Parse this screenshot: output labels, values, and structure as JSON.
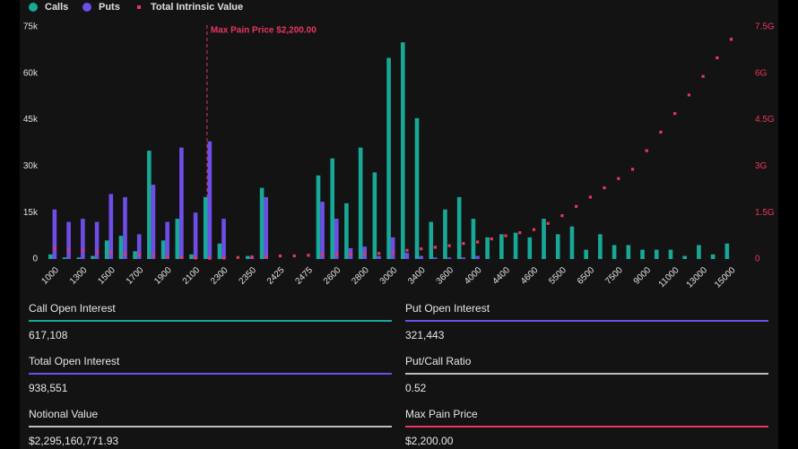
{
  "chart_data": {
    "type": "bar",
    "categories": [
      1000,
      null,
      1300,
      null,
      1500,
      null,
      1700,
      null,
      1900,
      null,
      2100,
      null,
      2300,
      null,
      2350,
      null,
      2425,
      null,
      2475,
      null,
      2600,
      null,
      2800,
      null,
      3000,
      null,
      3400,
      null,
      3600,
      null,
      4000,
      null,
      4400,
      null,
      4600,
      null,
      5500,
      null,
      6500,
      null,
      7500,
      null,
      9000,
      null,
      11000,
      null,
      13000,
      null,
      15000
    ],
    "series": [
      {
        "name": "Calls",
        "color": "#17a898",
        "values": [
          1500,
          500,
          500,
          1000,
          6000,
          7500,
          2500,
          35000,
          6000,
          13000,
          1500,
          20000,
          5000,
          0,
          1000,
          23000,
          0,
          0,
          0,
          27000,
          32500,
          18000,
          36000,
          28000,
          65000,
          70000,
          45500,
          12000,
          16000,
          20000,
          13000,
          7000,
          8000,
          8500,
          7000,
          13000,
          8000,
          10500,
          3000,
          8000,
          4500,
          4500,
          3000,
          3000,
          3000,
          1000,
          4500,
          1500,
          5000
        ]
      },
      {
        "name": "Puts",
        "color": "#6f4ee8",
        "values": [
          16000,
          12000,
          13000,
          12000,
          21000,
          20000,
          8000,
          24000,
          12000,
          36000,
          15000,
          38000,
          13000,
          0,
          500,
          20000,
          0,
          0,
          0,
          18500,
          13000,
          3500,
          4000,
          1000,
          7000,
          2000,
          1000,
          500,
          500,
          500,
          1000,
          0,
          0,
          0,
          0,
          0,
          0,
          0,
          0,
          0,
          0,
          0,
          0,
          0,
          0,
          0,
          0,
          0,
          0
        ]
      },
      {
        "name": "Total Intrinsic Value",
        "color": "#e8365d",
        "axis": "y2",
        "type": "scatter",
        "values": [
          350000000.0,
          300000000.0,
          280000000.0,
          250000000.0,
          200000000.0,
          160000000.0,
          130000000.0,
          100000000.0,
          80000000.0,
          50000000.0,
          30000000.0,
          20000000.0,
          30000000.0,
          50000000.0,
          70000000.0,
          80000000.0,
          100000000.0,
          100000000.0,
          120000000.0,
          130000000.0,
          140000000.0,
          150000000.0,
          160000000.0,
          180000000.0,
          200000000.0,
          280000000.0,
          330000000.0,
          380000000.0,
          430000000.0,
          500000000.0,
          550000000.0,
          650000000.0,
          750000000.0,
          850000000.0,
          950000000.0,
          1150000000.0,
          1400000000.0,
          1700000000.0,
          2000000000.0,
          2300000000.0,
          2600000000.0,
          2900000000.0,
          3500000000.0,
          4100000000.0,
          4700000000.0,
          5300000000.0,
          5900000000.0,
          6500000000.0,
          7100000000.0
        ]
      }
    ],
    "ylim": [
      0,
      75000
    ],
    "yticks": [
      0,
      {
        "value": 15000,
        "label": "15k"
      },
      {
        "value": 30000,
        "label": "30k"
      },
      {
        "value": 45000,
        "label": "45k"
      },
      {
        "value": 60000,
        "label": "60k"
      },
      {
        "value": 75000,
        "label": "75k"
      }
    ],
    "y2lim": [
      0,
      7500000000
    ],
    "y2ticks": [
      0,
      {
        "value": 1500000000,
        "label": "1.5G"
      },
      {
        "value": 3000000000,
        "label": "3G"
      },
      {
        "value": 4500000000,
        "label": "4.5G"
      },
      {
        "value": 6000000000,
        "label": "6G"
      },
      {
        "value": 7500000000,
        "label": "7.5G"
      }
    ],
    "annotation": {
      "text": "Max Pain Price $2,200.00",
      "x": 2200,
      "color": "#e8365d"
    }
  },
  "stats": [
    {
      "label": "Call Open Interest",
      "value": "617,108",
      "color": "#17a898"
    },
    {
      "label": "Put Open Interest",
      "value": "321,443",
      "color": "#6f4ee8"
    },
    {
      "label": "Total Open Interest",
      "value": "938,551",
      "color": "#6f4ee8"
    },
    {
      "label": "Put/Call Ratio",
      "value": "0.52",
      "color": "#bdbdbd"
    },
    {
      "label": "Notional Value",
      "value": "$2,295,160,771.93",
      "color": "#bdbdbd"
    },
    {
      "label": "Max Pain Price",
      "value": "$2,200.00",
      "color": "#e8365d"
    }
  ]
}
